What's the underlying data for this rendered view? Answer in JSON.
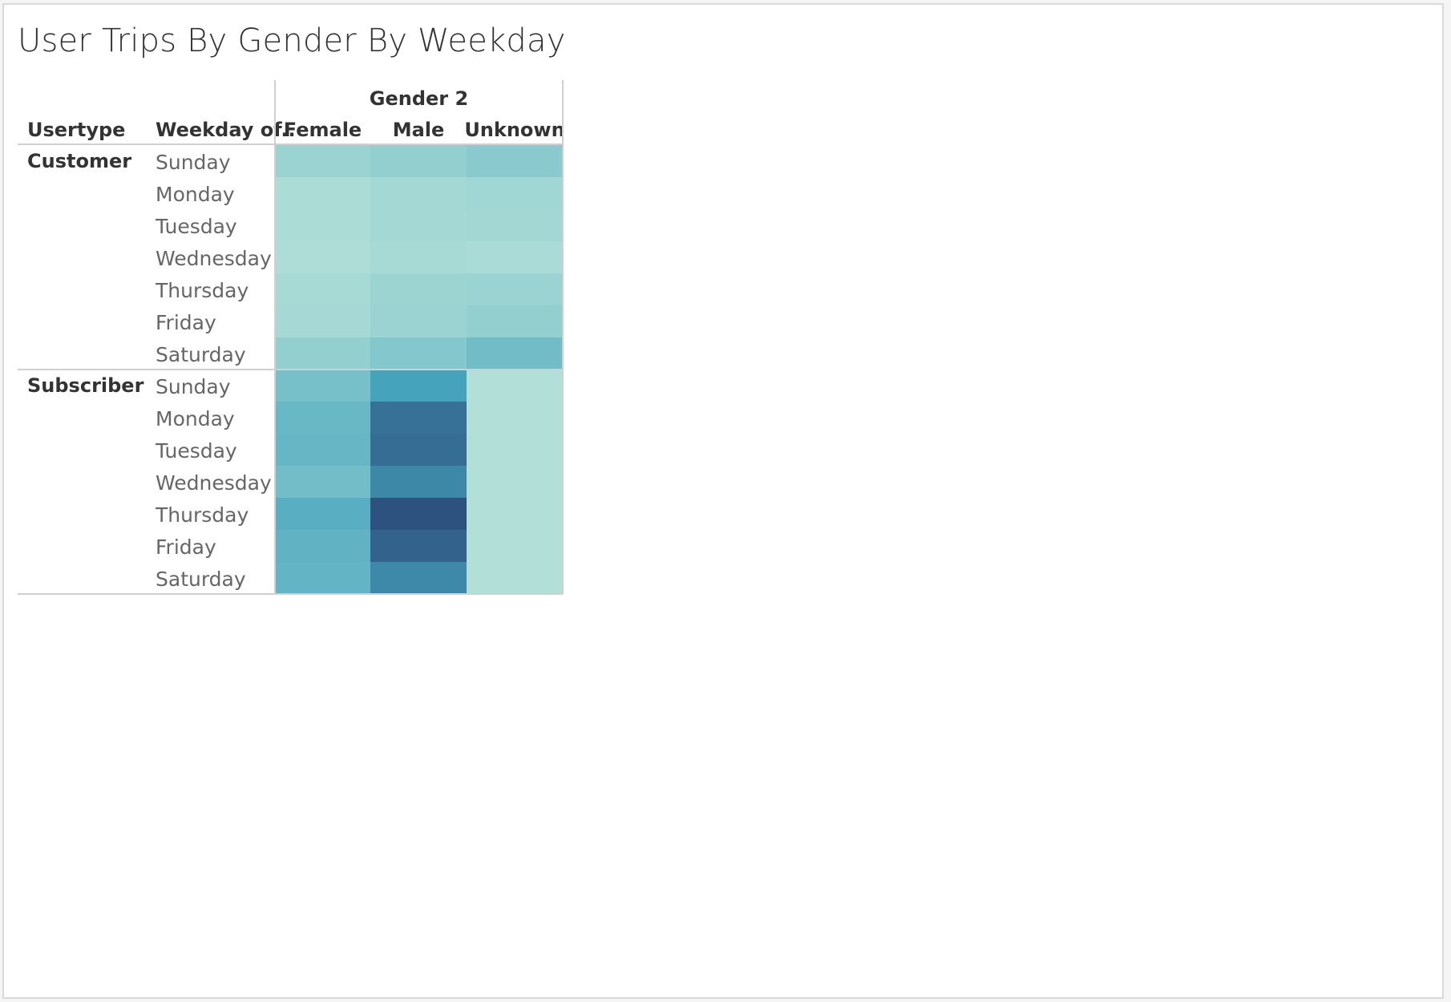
{
  "title": "User Trips By Gender By Weekday",
  "chart_data": {
    "type": "heatmap",
    "title": "User Trips By Gender By Weekday",
    "column_group_header": "Gender 2",
    "row_headers": [
      "Usertype",
      "Weekday of.."
    ],
    "columns": [
      "Female",
      "Male",
      "Unknown"
    ],
    "groups": [
      {
        "name": "Customer",
        "rows": [
          {
            "label": "Sunday",
            "values": [
              0.17,
              0.2,
              0.25
            ]
          },
          {
            "label": "Monday",
            "values": [
              0.08,
              0.12,
              0.14
            ]
          },
          {
            "label": "Tuesday",
            "values": [
              0.08,
              0.12,
              0.13
            ]
          },
          {
            "label": "Wednesday",
            "values": [
              0.07,
              0.1,
              0.09
            ]
          },
          {
            "label": "Thursday",
            "values": [
              0.1,
              0.16,
              0.17
            ]
          },
          {
            "label": "Friday",
            "values": [
              0.11,
              0.17,
              0.2
            ]
          },
          {
            "label": "Saturday",
            "values": [
              0.2,
              0.28,
              0.38
            ]
          }
        ]
      },
      {
        "name": "Subscriber",
        "rows": [
          {
            "label": "Sunday",
            "values": [
              0.35,
              0.6,
              0.05
            ]
          },
          {
            "label": "Monday",
            "values": [
              0.42,
              0.85,
              0.05
            ]
          },
          {
            "label": "Tuesday",
            "values": [
              0.43,
              0.87,
              0.05
            ]
          },
          {
            "label": "Wednesday",
            "values": [
              0.37,
              0.74,
              0.05
            ]
          },
          {
            "label": "Thursday",
            "values": [
              0.5,
              1.0,
              0.05
            ]
          },
          {
            "label": "Friday",
            "values": [
              0.46,
              0.92,
              0.05
            ]
          },
          {
            "label": "Saturday",
            "values": [
              0.45,
              0.73,
              0.05
            ]
          }
        ]
      }
    ],
    "color_scale": {
      "low": "#bce5da",
      "mid": "#45a4bc",
      "high": "#2e5280"
    },
    "value_units": "relative trip count (estimated from color intensity)"
  }
}
